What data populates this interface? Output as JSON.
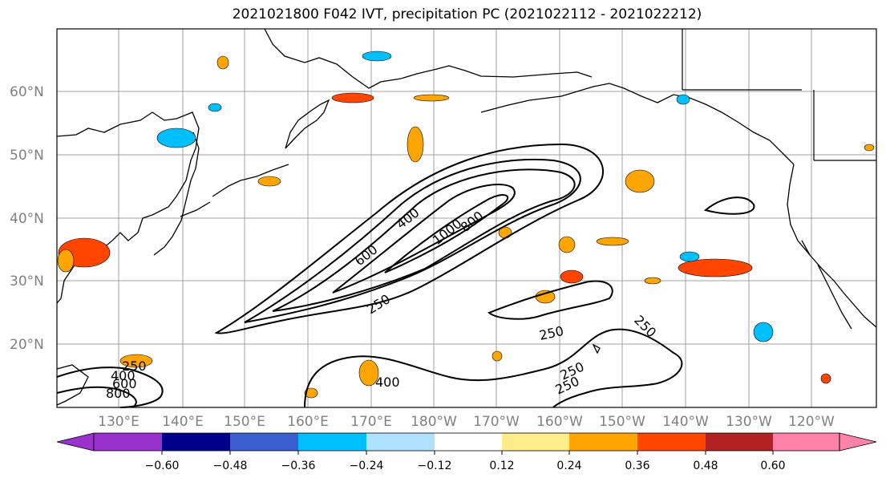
{
  "title": "2021021800 F042 IVT, precipitation PC (2021022112 - 2021022212)",
  "map": {
    "lat_labels": [
      "60°N",
      "50°N",
      "40°N",
      "30°N",
      "20°N"
    ],
    "lon_labels": [
      "130°E",
      "140°E",
      "150°E",
      "160°E",
      "170°E",
      "180°W",
      "170°W",
      "160°W",
      "150°W",
      "140°W",
      "130°W",
      "120°W"
    ],
    "contour_labels": [
      "400",
      "1000",
      "800",
      "600",
      "250",
      "250",
      "250",
      "250",
      "400",
      "250",
      "250",
      "400",
      "600",
      "800"
    ]
  },
  "colorbar": {
    "ticks": [
      "−0.60",
      "−0.48",
      "−0.36",
      "−0.24",
      "−0.12",
      "0.12",
      "0.24",
      "0.36",
      "0.48",
      "0.60"
    ],
    "colors": [
      "#9932cc",
      "#00008b",
      "#3a5fcd",
      "#00bfff",
      "#b0e2ff",
      "#ffffff",
      "#ffec8b",
      "#ffa500",
      "#ff4500",
      "#b22222",
      "#ff82ab"
    ]
  }
}
